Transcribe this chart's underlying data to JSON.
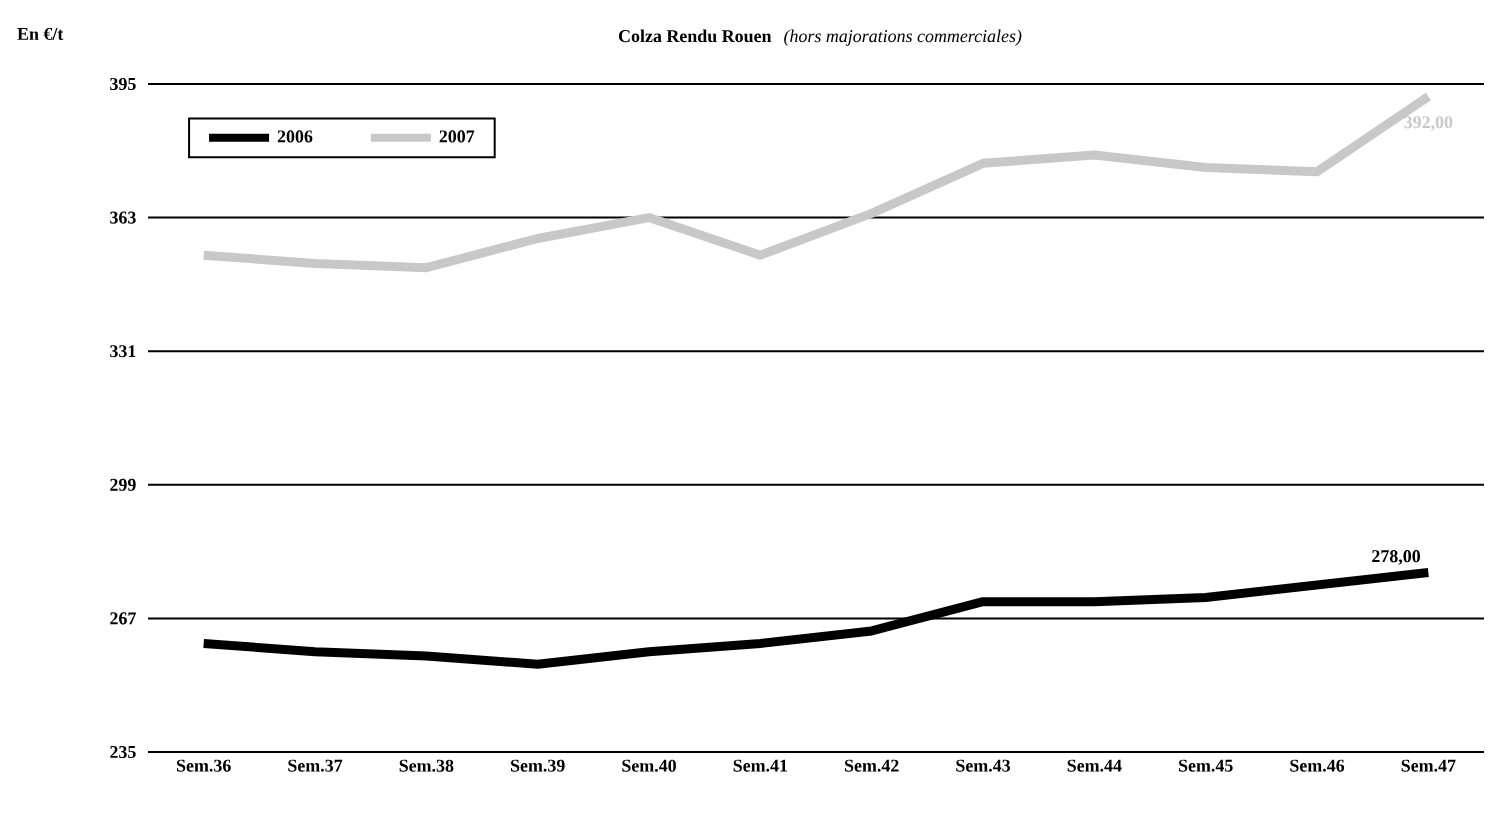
{
  "chart_data": {
    "type": "line",
    "title": "Colza Rendu Rouen",
    "subtitle": "(hors majorations commerciales)",
    "ylabel": "En €/t",
    "categories": [
      "Sem.36",
      "Sem.37",
      "Sem.38",
      "Sem.39",
      "Sem.40",
      "Sem.41",
      "Sem.42",
      "Sem.43",
      "Sem.44",
      "Sem.45",
      "Sem.46",
      "Sem.47"
    ],
    "series": [
      {
        "name": "2006",
        "color": "#000000",
        "values": [
          261,
          259,
          258,
          256,
          259,
          261,
          264,
          271,
          271,
          272,
          275,
          278
        ],
        "value_labels": [
          null,
          null,
          null,
          null,
          null,
          null,
          null,
          null,
          null,
          null,
          null,
          "278,00"
        ]
      },
      {
        "name": "2007",
        "color": "#c8c8c8",
        "values": [
          354,
          352,
          351,
          358,
          363,
          354,
          364,
          376,
          378,
          375,
          374,
          392
        ],
        "value_labels": [
          null,
          null,
          null,
          null,
          null,
          null,
          null,
          null,
          null,
          null,
          null,
          "392,00"
        ]
      }
    ],
    "ylim": [
      235,
      395
    ],
    "yticks": [
      235,
      267,
      299,
      331,
      363,
      395
    ],
    "grid": "y",
    "legend": "top left",
    "marker": "none",
    "line_style": "solid"
  }
}
